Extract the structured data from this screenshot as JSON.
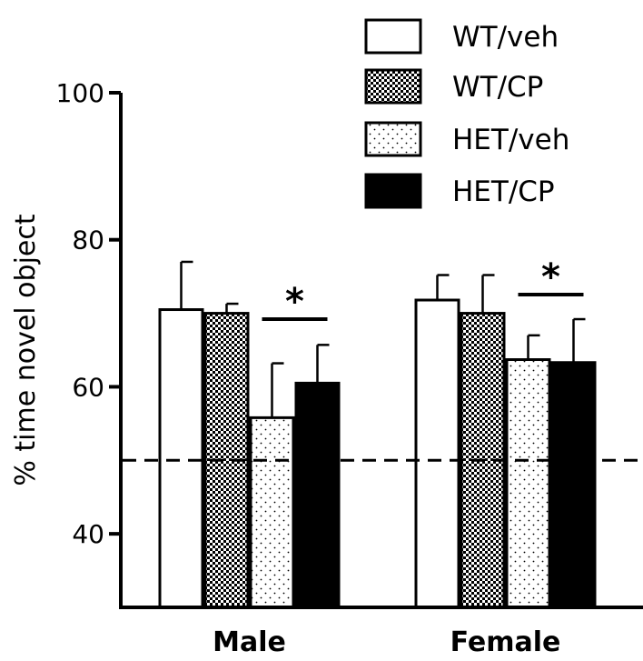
{
  "chart_data": {
    "type": "bar",
    "title": "",
    "xlabel": "",
    "ylabel": "% time novel object",
    "ylim": [
      30,
      100
    ],
    "yticks": [
      40,
      60,
      80,
      100
    ],
    "ytick_labels": [
      "40",
      "60",
      "80",
      "100"
    ],
    "categories": [
      "Male",
      "Female"
    ],
    "series": [
      {
        "name": "WT/veh",
        "pattern": "solid-white",
        "values": [
          70.5,
          71.8
        ],
        "errors": [
          6.5,
          3.4
        ]
      },
      {
        "name": "WT/CP",
        "pattern": "checker",
        "values": [
          70.0,
          70.0
        ],
        "errors": [
          1.3,
          5.2
        ]
      },
      {
        "name": "HET/veh",
        "pattern": "dots",
        "values": [
          55.8,
          63.7
        ],
        "errors": [
          7.4,
          3.3
        ]
      },
      {
        "name": "HET/CP",
        "pattern": "solid-black",
        "values": [
          60.5,
          63.3
        ],
        "errors": [
          5.2,
          5.9
        ]
      }
    ],
    "reference_line": {
      "value": 50,
      "style": "dashed"
    },
    "significance": [
      {
        "category": "Male",
        "between": [
          "HET/veh",
          "HET/CP"
        ],
        "label": "*"
      },
      {
        "category": "Female",
        "between": [
          "HET/veh",
          "HET/CP"
        ],
        "label": "*"
      }
    ],
    "legend_position": "top-right",
    "grid": false
  },
  "colors": {
    "ink": "#000000",
    "background": "#ffffff"
  }
}
